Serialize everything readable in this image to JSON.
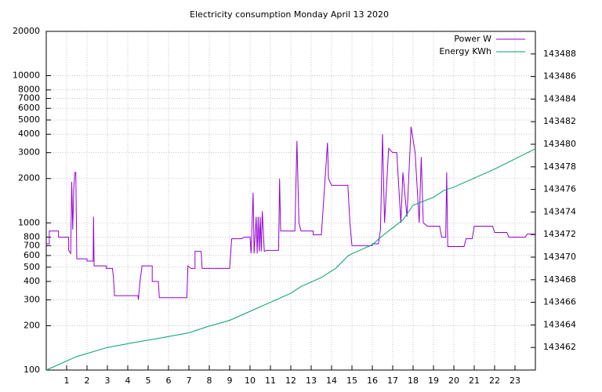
{
  "chart_data": {
    "type": "line",
    "title": "Electricity consumption Monday April 13 2020",
    "xlim": [
      0,
      24
    ],
    "xticks": [
      1,
      2,
      3,
      4,
      5,
      6,
      7,
      8,
      9,
      10,
      11,
      12,
      13,
      14,
      15,
      16,
      17,
      18,
      19,
      20,
      21,
      22,
      23
    ],
    "ylim": [
      100,
      20000
    ],
    "ylog": true,
    "yticks": [
      100,
      200,
      300,
      400,
      500,
      600,
      700,
      800,
      1000,
      2000,
      3000,
      4000,
      5000,
      6000,
      7000,
      8000,
      10000,
      20000
    ],
    "y2lim": [
      143460,
      143490
    ],
    "y2ticks": [
      143462,
      143464,
      143466,
      143468,
      143470,
      143472,
      143474,
      143476,
      143478,
      143480,
      143482,
      143484,
      143486,
      143488
    ],
    "grid": true,
    "legend": "top-right",
    "series": [
      {
        "name": "Power W",
        "color": "#9400d3",
        "x": [
          0,
          0.15,
          0.15,
          0.6,
          0.6,
          1.1,
          1.1,
          1.2,
          1.25,
          1.3,
          1.35,
          1.4,
          1.45,
          1.5,
          2.0,
          2.0,
          2.3,
          2.32,
          2.35,
          2.95,
          2.95,
          3.25,
          3.3,
          3.35,
          4.5,
          4.52,
          4.6,
          4.7,
          5.2,
          5.2,
          5.5,
          5.55,
          6.9,
          6.95,
          7.1,
          7.3,
          7.3,
          7.6,
          7.65,
          9.0,
          9.05,
          9.1,
          9.6,
          9.7,
          10.0,
          10.05,
          10.15,
          10.2,
          10.3,
          10.35,
          10.4,
          10.45,
          10.5,
          10.55,
          10.6,
          10.7,
          10.8,
          11.4,
          11.45,
          11.5,
          12.2,
          12.3,
          12.4,
          12.5,
          13.1,
          13.1,
          13.5,
          13.8,
          13.85,
          14.0,
          14.8,
          14.9,
          15.0,
          16.0,
          16.0,
          16.3,
          16.4,
          16.5,
          16.6,
          16.8,
          17.0,
          17.2,
          17.4,
          17.5,
          17.7,
          17.9,
          18.1,
          18.3,
          18.4,
          18.5,
          18.7,
          19.3,
          19.4,
          19.6,
          19.65,
          19.7,
          20.5,
          20.6,
          20.9,
          21.0,
          21.9,
          22.0,
          22.6,
          22.7,
          23.5,
          23.6,
          24
        ],
        "values": [
          720,
          720,
          880,
          880,
          800,
          800,
          650,
          620,
          1900,
          900,
          1700,
          2200,
          2200,
          570,
          570,
          550,
          550,
          1100,
          510,
          510,
          490,
          490,
          420,
          320,
          320,
          300,
          400,
          510,
          510,
          400,
          400,
          310,
          310,
          510,
          490,
          490,
          640,
          640,
          490,
          490,
          620,
          780,
          780,
          800,
          800,
          620,
          1600,
          620,
          1100,
          620,
          1100,
          640,
          1100,
          640,
          1200,
          640,
          650,
          650,
          2000,
          880,
          880,
          3600,
          1000,
          880,
          880,
          830,
          830,
          3500,
          2000,
          1800,
          1800,
          1000,
          700,
          700,
          720,
          720,
          900,
          4000,
          1000,
          3200,
          3000,
          3000,
          1000,
          2200,
          1100,
          4500,
          3000,
          1000,
          2800,
          1000,
          950,
          950,
          800,
          800,
          2200,
          690,
          690,
          780,
          780,
          950,
          950,
          860,
          860,
          800,
          800,
          840,
          840
        ]
      },
      {
        "name": "Energy KWh",
        "color": "#009e73",
        "axis": "y2",
        "x": [
          0,
          1.5,
          3,
          4.5,
          5.5,
          7,
          8,
          9,
          10,
          11,
          12,
          12.5,
          13.5,
          14.2,
          14.8,
          15,
          16,
          16.5,
          17,
          17.5,
          18,
          19,
          19.5,
          20,
          21,
          22,
          23,
          24
        ],
        "values": [
          143460.0,
          143461.2,
          143462.0,
          143462.5,
          143462.8,
          143463.3,
          143463.9,
          143464.4,
          143465.2,
          143466.0,
          143466.8,
          143467.4,
          143468.2,
          143469.0,
          143470.1,
          143470.3,
          143471.1,
          143471.9,
          143472.6,
          143473.3,
          143474.6,
          143475.3,
          143475.9,
          143476.2,
          143477.0,
          143477.8,
          143478.7,
          143479.6
        ]
      }
    ]
  }
}
